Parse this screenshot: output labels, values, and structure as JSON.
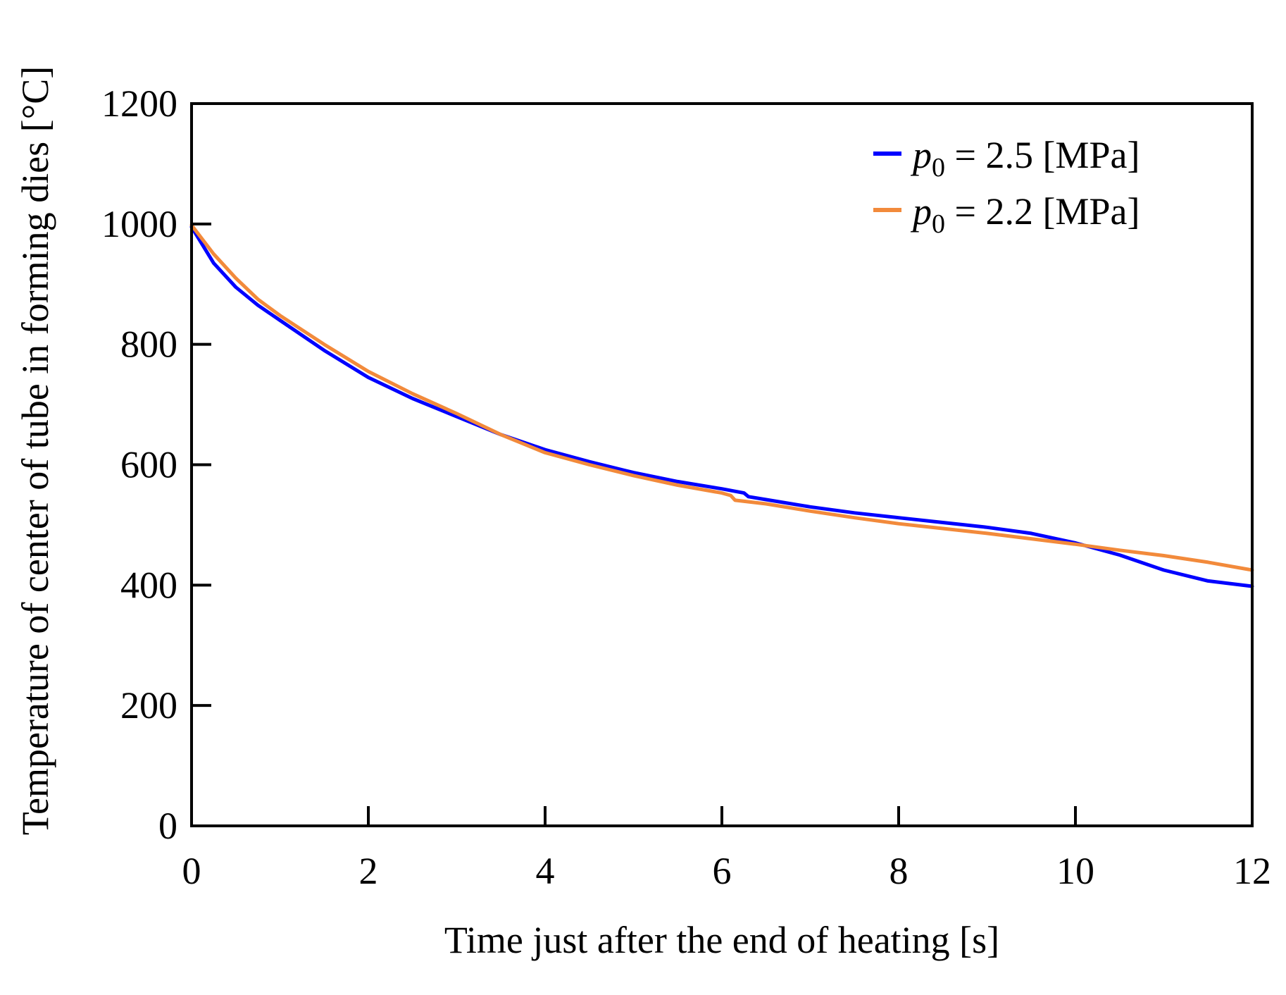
{
  "chart_data": {
    "type": "line",
    "title": "",
    "xlabel": "Time just after the end of heating [s]",
    "ylabel": "Temperature of center of tube in forming dies [°C]",
    "xlim": [
      0,
      12
    ],
    "ylim": [
      0,
      1200
    ],
    "xticks": [
      0,
      2,
      4,
      6,
      8,
      10,
      12
    ],
    "yticks": [
      0,
      200,
      400,
      600,
      800,
      1000,
      1200
    ],
    "xtick_labels": [
      "0",
      "2",
      "4",
      "6",
      "8",
      "10",
      "12"
    ],
    "ytick_labels": [
      "0",
      "200",
      "400",
      "600",
      "800",
      "1000",
      "1200"
    ],
    "grid": false,
    "legend_position": "top-right",
    "series": [
      {
        "name": "p0 = 2.5 [MPa]",
        "legend_var": "p",
        "legend_sub": "0",
        "legend_rest": " = 2.5 [MPa]",
        "color": "#0000ff",
        "x": [
          0,
          0.25,
          0.5,
          0.75,
          1.0,
          1.5,
          2.0,
          2.5,
          3.0,
          3.5,
          4.0,
          4.5,
          5.0,
          5.5,
          6.0,
          6.25,
          6.3,
          6.5,
          7.0,
          7.5,
          8.0,
          8.5,
          9.0,
          9.5,
          10.0,
          10.5,
          11.0,
          11.5,
          12.0
        ],
        "y": [
          995,
          935,
          895,
          865,
          840,
          790,
          745,
          710,
          680,
          650,
          625,
          605,
          587,
          572,
          560,
          553,
          547,
          542,
          530,
          520,
          512,
          504,
          496,
          486,
          470,
          450,
          425,
          407,
          398
        ]
      },
      {
        "name": "p0 = 2.2 [MPa]",
        "legend_var": "p",
        "legend_sub": "0",
        "legend_rest": " = 2.2 [MPa]",
        "color": "#f28a3b",
        "x": [
          0,
          0.25,
          0.5,
          0.75,
          1.0,
          1.5,
          2.0,
          2.5,
          3.0,
          3.5,
          4.0,
          4.5,
          5.0,
          5.5,
          6.0,
          6.1,
          6.15,
          6.5,
          7.0,
          7.5,
          8.0,
          8.5,
          9.0,
          9.5,
          10.0,
          10.5,
          11.0,
          11.5,
          12.0
        ],
        "y": [
          998,
          950,
          910,
          875,
          848,
          800,
          755,
          718,
          685,
          650,
          620,
          600,
          582,
          566,
          553,
          549,
          541,
          535,
          523,
          512,
          502,
          494,
          486,
          477,
          468,
          458,
          449,
          438,
          425
        ]
      }
    ]
  }
}
